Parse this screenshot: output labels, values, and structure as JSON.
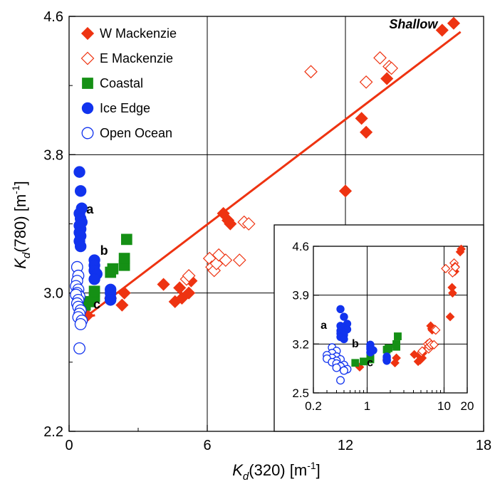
{
  "chart_data": {
    "type": "scatter",
    "xlabel": {
      "main": "K",
      "sub": "d",
      "rest": "(320) [m",
      "sup": "-1",
      "end": "]"
    },
    "ylabel": {
      "main": "K",
      "sub": "d",
      "rest": "(780) [m",
      "sup": "-1",
      "end": "]"
    },
    "xlim": [
      0,
      18
    ],
    "ylim": [
      2.2,
      4.6
    ],
    "xticks": [
      "0",
      "6",
      "12",
      "18"
    ],
    "yticks": [
      "2.2",
      "3.0",
      "3.8",
      "4.6"
    ],
    "grid": true,
    "legend_position": "top-left",
    "colors": {
      "red": "#ee3311",
      "green": "#159015",
      "blue": "#1133ee"
    },
    "series": [
      {
        "name": "W Mackenzie",
        "marker": "diamond-filled",
        "color": "#ee3311",
        "x": [
          0.8,
          1.8,
          2.3,
          2.4,
          4.1,
          4.6,
          4.8,
          4.9,
          5.2,
          5.3,
          6.7,
          6.9,
          7.0,
          12.0,
          12.7,
          12.9,
          13.8,
          16.2,
          16.7
        ],
        "y": [
          2.87,
          2.97,
          2.93,
          3.0,
          3.05,
          2.95,
          3.03,
          2.97,
          3.0,
          3.07,
          3.46,
          3.42,
          3.4,
          3.59,
          4.01,
          3.93,
          4.24,
          4.52,
          4.56
        ]
      },
      {
        "name": "E Mackenzie",
        "marker": "diamond-open",
        "color": "#ee3311",
        "x": [
          5.1,
          5.2,
          6.1,
          6.2,
          6.3,
          6.4,
          6.5,
          6.8,
          7.6,
          7.8,
          7.4,
          10.5,
          12.9,
          13.5,
          13.9,
          14.0
        ],
        "y": [
          3.08,
          3.1,
          3.2,
          3.15,
          3.13,
          3.17,
          3.22,
          3.19,
          3.41,
          3.4,
          3.19,
          4.28,
          4.22,
          4.36,
          4.31,
          4.3
        ]
      },
      {
        "name": "Coastal",
        "marker": "square-filled",
        "color": "#159015",
        "x": [
          0.7,
          0.9,
          1.1,
          1.1,
          1.8,
          1.9,
          2.4,
          2.4,
          2.5
        ],
        "y": [
          2.93,
          2.95,
          2.98,
          3.01,
          3.12,
          3.14,
          3.16,
          3.2,
          3.31
        ]
      },
      {
        "name": "Ice Edge",
        "marker": "circle-filled",
        "color": "#1133ee",
        "x": [
          0.45,
          0.5,
          0.55,
          0.45,
          0.5,
          0.55,
          0.45,
          0.5,
          0.45,
          0.5,
          0.45,
          0.5,
          1.1,
          1.1,
          1.1,
          1.2,
          1.1,
          1.8,
          1.8,
          1.8,
          1.8
        ],
        "y": [
          3.7,
          3.59,
          3.49,
          3.46,
          3.43,
          3.41,
          3.39,
          3.37,
          3.35,
          3.33,
          3.3,
          3.27,
          3.19,
          3.16,
          3.13,
          3.11,
          3.08,
          3.02,
          3.0,
          2.97,
          2.96
        ]
      },
      {
        "name": "Open Ocean",
        "marker": "circle-open",
        "color": "#1133ee",
        "x": [
          0.35,
          0.4,
          0.35,
          0.3,
          0.4,
          0.35,
          0.45,
          0.3,
          0.4,
          0.35,
          0.4,
          0.5,
          0.45,
          0.4,
          0.55,
          0.5,
          0.45
        ],
        "y": [
          3.15,
          3.1,
          3.07,
          3.04,
          3.02,
          3.0,
          2.98,
          2.99,
          2.96,
          2.94,
          2.92,
          2.9,
          2.88,
          2.86,
          2.84,
          2.82,
          2.68
        ]
      }
    ],
    "fit_line": {
      "x": [
        0.7,
        17.0
      ],
      "y": [
        2.86,
        4.51
      ],
      "color": "#ee3311"
    },
    "annotations": [
      {
        "text": "Shallow",
        "x": 16.0,
        "y": 4.53,
        "style": "italic"
      },
      {
        "text": "a",
        "x": 0.75,
        "y": 3.46,
        "style": "bold"
      },
      {
        "text": "b",
        "x": 1.35,
        "y": 3.22,
        "style": "bold"
      },
      {
        "text": "c",
        "x": 1.05,
        "y": 2.91,
        "style": "bold"
      }
    ],
    "inset": {
      "xscale": "log",
      "xlim": [
        0.2,
        20
      ],
      "ylim": [
        2.5,
        4.6
      ],
      "xticks": [
        {
          "v": 0.2,
          "label": "0.2"
        },
        {
          "v": 1,
          "label": "1"
        },
        {
          "v": 10,
          "label": "10"
        },
        {
          "v": 20,
          "label": "20"
        }
      ],
      "yticks": [
        "2.5",
        "3.2",
        "3.9",
        "4.6"
      ],
      "grid_x": [
        1,
        10
      ],
      "grid_y": [
        3.2,
        3.9
      ],
      "annotations": [
        {
          "text": "a",
          "x": 0.3,
          "y": 3.42
        },
        {
          "text": "b",
          "x": 0.78,
          "y": 3.15
        },
        {
          "text": "c",
          "x": 1.2,
          "y": 2.88
        }
      ]
    }
  }
}
